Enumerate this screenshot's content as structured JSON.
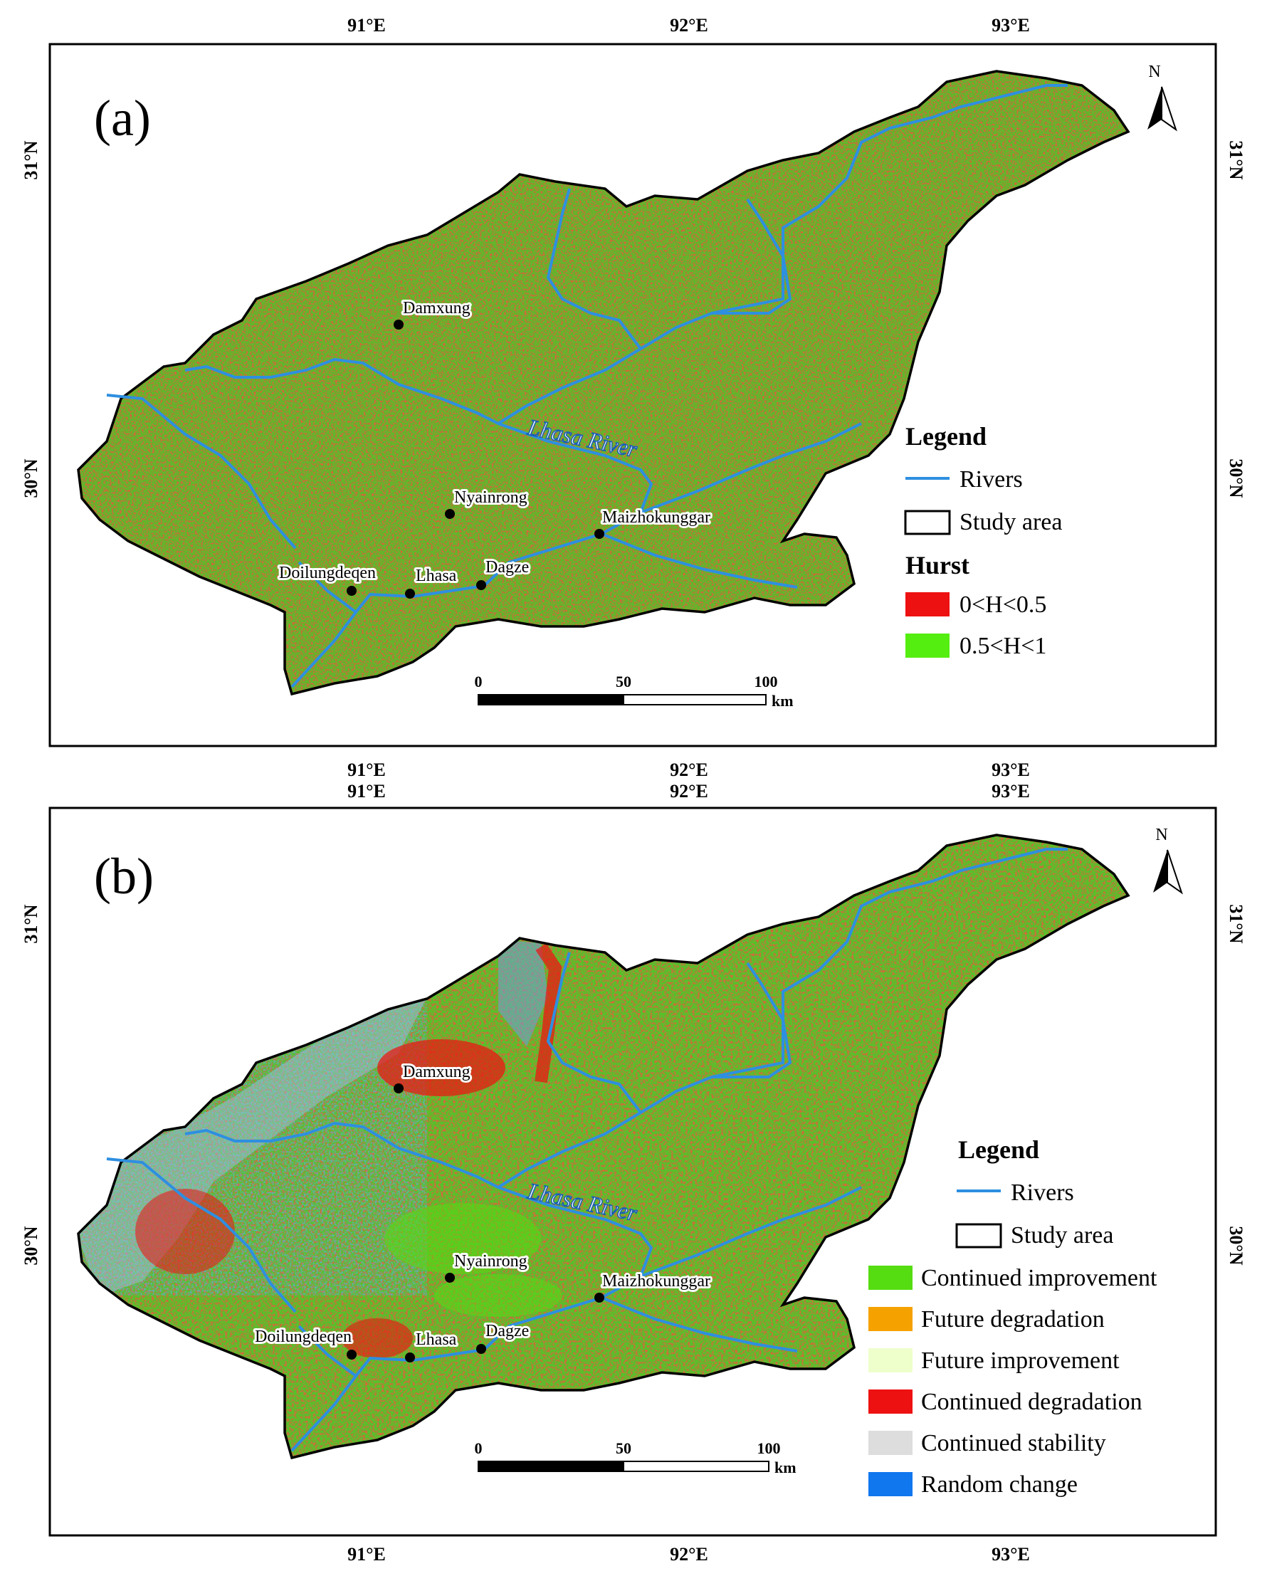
{
  "maps": [
    {
      "id": "a",
      "panel_label": "(a)",
      "legend": {
        "title": "Legend",
        "items": [
          {
            "kind": "line",
            "label": "Rivers",
            "color": "#2e8fe0"
          },
          {
            "kind": "box",
            "label": "Study area",
            "color": "#ffffff"
          }
        ],
        "subtitle": "Hurst",
        "classes": [
          {
            "label": "0<H<0.5",
            "color": "#ee1111"
          },
          {
            "label": "0.5<H<1",
            "color": "#55ee11"
          }
        ]
      }
    },
    {
      "id": "b",
      "panel_label": "(b)",
      "legend": {
        "title": "Legend",
        "items": [
          {
            "kind": "line",
            "label": "Rivers",
            "color": "#2e8fe0"
          },
          {
            "kind": "box",
            "label": "Study area",
            "color": "#ffffff"
          }
        ],
        "subtitle": "",
        "classes": [
          {
            "label": "Continued improvement",
            "color": "#55dd11"
          },
          {
            "label": "Future degradation",
            "color": "#f5a100"
          },
          {
            "label": "Future improvement",
            "color": "#eeffcc"
          },
          {
            "label": "Continued degradation",
            "color": "#ee1111"
          },
          {
            "label": "Continued stability",
            "color": "#dddddd"
          },
          {
            "label": "Random change",
            "color": "#1177ee"
          }
        ]
      }
    }
  ],
  "graticule": {
    "lon": [
      "91°E",
      "92°E",
      "93°E"
    ],
    "lat": [
      "31°N",
      "30°N"
    ]
  },
  "cities": [
    "Damxung",
    "Nyainrong",
    "Maizhokunggar",
    "Doilungdeqen",
    "Lhasa",
    "Dagze"
  ],
  "river_label": "Lhasa River",
  "north_label": "N",
  "scale_bar": {
    "ticks": [
      "0",
      "50",
      "100"
    ],
    "unit": "km"
  },
  "colors": {
    "river": "#2e8fe0",
    "base": "#5a9a2a",
    "frame": "#000000"
  }
}
